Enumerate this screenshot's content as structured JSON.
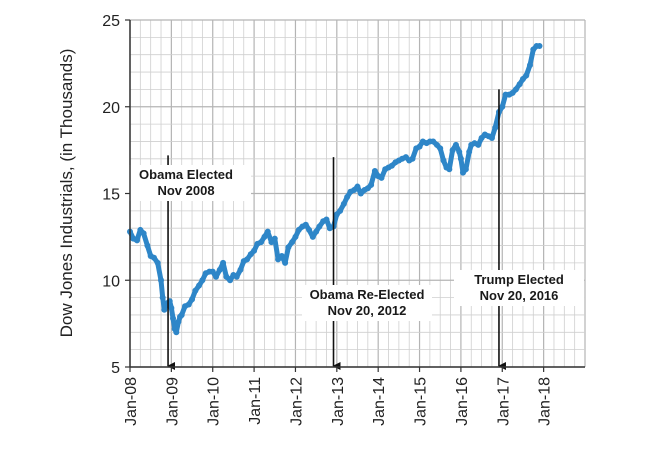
{
  "chart_data": {
    "type": "scatter",
    "title": "",
    "xlabel": "",
    "ylabel": "Dow Jones Industrials, (in Thousands)",
    "xlim": [
      2008.0,
      2019.0
    ],
    "ylim": [
      5,
      25
    ],
    "x_ticks": [
      {
        "value": 2008,
        "label": "Jan-08"
      },
      {
        "value": 2009,
        "label": "Jan-09"
      },
      {
        "value": 2010,
        "label": "Jan-10"
      },
      {
        "value": 2011,
        "label": "Jan-11"
      },
      {
        "value": 2012,
        "label": "Jan-12"
      },
      {
        "value": 2013,
        "label": "Jan-13"
      },
      {
        "value": 2014,
        "label": "Jan-14"
      },
      {
        "value": 2015,
        "label": "Jan-15"
      },
      {
        "value": 2016,
        "label": "Jan-16"
      },
      {
        "value": 2017,
        "label": "Jan-17"
      },
      {
        "value": 2018,
        "label": "Jan-18"
      }
    ],
    "y_ticks": [
      {
        "value": 5,
        "label": "5"
      },
      {
        "value": 10,
        "label": "10"
      },
      {
        "value": 15,
        "label": "15"
      },
      {
        "value": 20,
        "label": "20"
      },
      {
        "value": 25,
        "label": "25"
      }
    ],
    "grid": true,
    "series": [
      {
        "color": "#2e86c8",
        "x": [
          2008.0,
          2008.08,
          2008.17,
          2008.25,
          2008.33,
          2008.42,
          2008.5,
          2008.58,
          2008.67,
          2008.75,
          2008.79,
          2008.83,
          2008.87,
          2008.92,
          2008.96,
          2009.0,
          2009.04,
          2009.08,
          2009.12,
          2009.17,
          2009.21,
          2009.25,
          2009.33,
          2009.42,
          2009.5,
          2009.58,
          2009.67,
          2009.75,
          2009.83,
          2009.92,
          2010.0,
          2010.08,
          2010.17,
          2010.25,
          2010.33,
          2010.42,
          2010.5,
          2010.58,
          2010.67,
          2010.75,
          2010.83,
          2010.92,
          2011.0,
          2011.08,
          2011.17,
          2011.25,
          2011.33,
          2011.42,
          2011.5,
          2011.58,
          2011.67,
          2011.75,
          2011.83,
          2011.92,
          2012.0,
          2012.08,
          2012.17,
          2012.25,
          2012.33,
          2012.42,
          2012.5,
          2012.58,
          2012.67,
          2012.75,
          2012.83,
          2012.92,
          2013.0,
          2013.08,
          2013.17,
          2013.25,
          2013.33,
          2013.42,
          2013.5,
          2013.58,
          2013.67,
          2013.75,
          2013.83,
          2013.92,
          2014.0,
          2014.08,
          2014.17,
          2014.25,
          2014.33,
          2014.42,
          2014.5,
          2014.58,
          2014.67,
          2014.75,
          2014.83,
          2014.92,
          2015.0,
          2015.08,
          2015.17,
          2015.25,
          2015.33,
          2015.42,
          2015.5,
          2015.58,
          2015.65,
          2015.72,
          2015.8,
          2015.88,
          2015.96,
          2016.0,
          2016.05,
          2016.12,
          2016.2,
          2016.25,
          2016.33,
          2016.42,
          2016.5,
          2016.58,
          2016.67,
          2016.75,
          2016.83,
          2016.92,
          2017.0,
          2017.08,
          2017.17,
          2017.25,
          2017.33,
          2017.42,
          2017.5,
          2017.58,
          2017.67,
          2017.75,
          2017.83,
          2017.9
        ],
        "y": [
          12.8,
          12.4,
          12.3,
          12.9,
          12.7,
          12.0,
          11.4,
          11.3,
          11.0,
          10.0,
          9.0,
          8.3,
          8.6,
          8.7,
          8.8,
          8.4,
          7.8,
          7.2,
          7.0,
          7.6,
          7.9,
          8.0,
          8.5,
          8.6,
          8.9,
          9.4,
          9.7,
          10.0,
          10.4,
          10.5,
          10.5,
          10.2,
          10.6,
          11.0,
          10.2,
          10.0,
          10.3,
          10.2,
          10.6,
          11.1,
          11.2,
          11.5,
          11.7,
          12.1,
          12.2,
          12.5,
          12.8,
          12.2,
          12.4,
          11.2,
          11.4,
          11.0,
          11.9,
          12.2,
          12.5,
          12.9,
          13.1,
          13.2,
          12.9,
          12.5,
          12.8,
          13.1,
          13.4,
          13.5,
          13.0,
          13.1,
          13.8,
          14.0,
          14.4,
          14.8,
          15.1,
          15.2,
          15.4,
          15.0,
          15.2,
          15.3,
          15.5,
          16.3,
          16.0,
          15.9,
          16.4,
          16.5,
          16.6,
          16.8,
          16.9,
          17.0,
          17.1,
          16.9,
          17.0,
          17.6,
          17.7,
          18.0,
          17.9,
          18.0,
          18.0,
          17.8,
          17.6,
          16.9,
          16.5,
          16.4,
          17.5,
          17.8,
          17.4,
          17.0,
          16.2,
          16.4,
          17.4,
          17.8,
          17.9,
          17.8,
          18.2,
          18.4,
          18.3,
          18.2,
          18.8,
          19.7,
          20.0,
          20.7,
          20.7,
          20.8,
          21.0,
          21.3,
          21.6,
          21.8,
          22.4,
          23.3,
          23.5,
          23.5
        ]
      }
    ],
    "annotations": [
      {
        "lines": [
          "Obama Elected",
          "Nov 2008"
        ],
        "x": 2008.92,
        "arrow_top_y": 17.2
      },
      {
        "lines": [
          "Obama Re-Elected",
          "Nov 20, 2012"
        ],
        "x": 2012.92,
        "arrow_top_y": 17.1
      },
      {
        "lines": [
          "Trump Elected",
          "Nov 20, 2016"
        ],
        "x": 2016.92,
        "arrow_top_y": 21.0
      }
    ]
  }
}
